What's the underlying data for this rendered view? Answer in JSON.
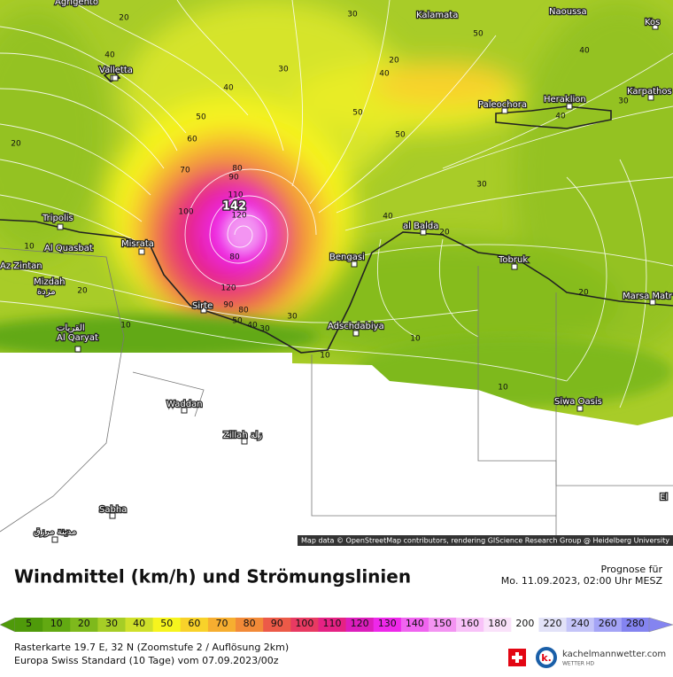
{
  "map": {
    "places": [
      "Agrigento",
      "Valletta",
      "Kalamata",
      "Naoussa",
      "Kos",
      "Paleochora",
      "Heraklion",
      "Karpathos",
      "Tripolis",
      "Al Quasbat",
      "Misrata",
      "Az Zintan",
      "Mizdah",
      "مزدة",
      "Al Qaryat",
      "القريات",
      "Sirte",
      "Bengasi",
      "al Balda",
      "Tobruk",
      "Marsa Matr",
      "Adschdabiya",
      "Waddan",
      "Zillah زلة",
      "Siwa Oasis",
      "Sabha",
      "مدينة مرزق",
      "El"
    ],
    "contour_labels": [
      20,
      30,
      40,
      30,
      40,
      50,
      60,
      70,
      80,
      90,
      110,
      100,
      142,
      120,
      80,
      120,
      90,
      80,
      50,
      40,
      30,
      30,
      40,
      50,
      50,
      40,
      20,
      30,
      20,
      10,
      10,
      10,
      20,
      40,
      30,
      20,
      10,
      20,
      10,
      40,
      50
    ],
    "attribution": "Map data © OpenStreetMap contributors, rendering GIScience Research Group @ Heidelberg University"
  },
  "legend": {
    "title": "Windmittel (km/h) und Strömungslinien",
    "forecast_label": "Prognose für",
    "forecast_time": "Mo. 11.09.2023, 02:00 Uhr MESZ",
    "scale": [
      5,
      10,
      20,
      30,
      40,
      50,
      60,
      70,
      80,
      90,
      100,
      110,
      120,
      130,
      140,
      150,
      160,
      180,
      200,
      220,
      240,
      260,
      280
    ],
    "colors": [
      "#4f9a0a",
      "#62a912",
      "#7eb91c",
      "#a6cd26",
      "#cfe02a",
      "#f6f41e",
      "#f8d22a",
      "#f6ae30",
      "#f28a38",
      "#ec5a48",
      "#e83a62",
      "#e52284",
      "#dc1ebc",
      "#ee28ea",
      "#f064f0",
      "#f394f2",
      "#f8c2f8",
      "#fae2fa",
      "#ffffff",
      "#e2e2f8",
      "#c4c4f8",
      "#a4a4f6",
      "#8484f0"
    ]
  },
  "footer": {
    "line1": "Rasterkarte 19.7 E, 32 N (Zoomstufe 2 / Auflösung 2km)",
    "line2": "Europa Swiss Standard (10 Tage) vom 07.09.2023/00z",
    "brand": "kachelmannwetter.com",
    "brand_sub": "WETTER HD"
  }
}
